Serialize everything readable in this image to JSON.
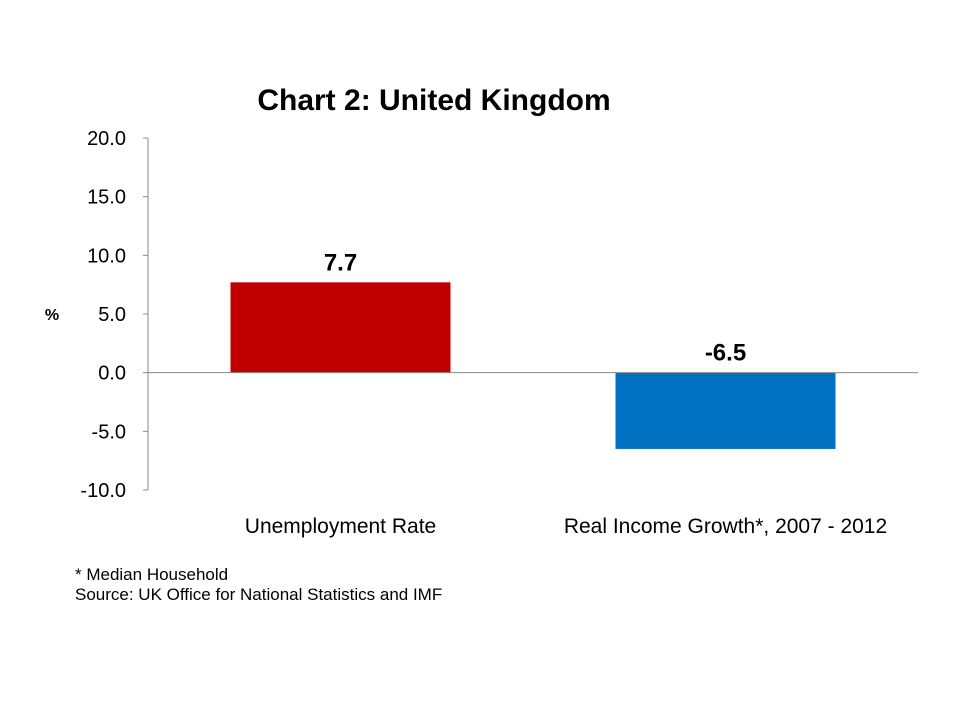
{
  "chart_data": {
    "type": "bar",
    "title": "Chart 2: United Kingdom",
    "xlabel": "",
    "ylabel": "%",
    "categories": [
      "Unemployment Rate",
      "Real Income Growth*, 2007 - 2012"
    ],
    "values": [
      7.7,
      -6.5
    ],
    "data_labels": [
      "7.7",
      "-6.5"
    ],
    "bar_colors": [
      "#C00000",
      "#0070C0"
    ],
    "ylim": [
      -10,
      20
    ],
    "yticks": [
      20,
      15,
      10,
      5,
      0,
      -5,
      -10
    ],
    "ytick_labels": [
      "20.0",
      "15.0",
      "10.0",
      "5.0",
      "0.0",
      "-5.0",
      "-10.0"
    ],
    "grid": false,
    "legend": "none"
  },
  "notes": {
    "footnote": "* Median Household",
    "source": "Source: UK Office for National Statistics and IMF"
  }
}
